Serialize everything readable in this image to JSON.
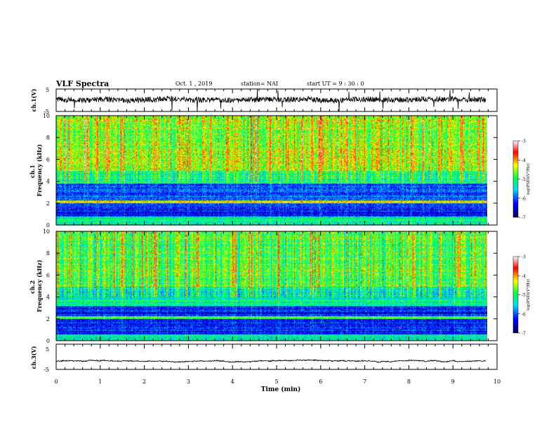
{
  "header": {
    "title": "VLF Spectra",
    "date": "Oct. 1  , 2019",
    "station": "station= NAI",
    "start": "start  UT =   9 : 30 : 0"
  },
  "chart_data": [
    {
      "type": "line",
      "panel": "ch1-waveform",
      "ylabel": "ch.1(V)",
      "ylim": [
        -5,
        5
      ],
      "yticks": [
        "5",
        "-5"
      ],
      "note": "dense noisy waveform centered near 0, excursions up to about ±5 V"
    },
    {
      "type": "heatmap",
      "panel": "ch1-spectrogram",
      "ylabel": "ch.1\nFrequency  (kHz)",
      "ylim": [
        0,
        10
      ],
      "yticks": [
        "0",
        "2",
        "4",
        "6",
        "8",
        "10"
      ],
      "xlim": [
        0,
        9.85
      ],
      "dominant_level_by_band": [
        {
          "f": [
            0,
            0.8
          ],
          "level": -5.2
        },
        {
          "f": [
            0.8,
            2.0
          ],
          "level": -6.2
        },
        {
          "f": [
            2.0,
            2.3
          ],
          "level": -4.3
        },
        {
          "f": [
            2.3,
            3.8
          ],
          "level": -6.0
        },
        {
          "f": [
            3.8,
            5.0
          ],
          "level": -5.0
        },
        {
          "f": [
            5.0,
            10.0
          ],
          "level": -4.5
        }
      ]
    },
    {
      "type": "heatmap",
      "panel": "ch2-spectrogram",
      "ylabel": "ch.2\nFrequency  (kHz)",
      "ylim": [
        0,
        10
      ],
      "yticks": [
        "0",
        "2",
        "4",
        "6",
        "8",
        "10"
      ],
      "xlim": [
        0,
        9.85
      ],
      "dominant_level_by_band": [
        {
          "f": [
            0,
            0.6
          ],
          "level": -5.3
        },
        {
          "f": [
            0.6,
            2.0
          ],
          "level": -6.2
        },
        {
          "f": [
            2.0,
            2.3
          ],
          "level": -5.0
        },
        {
          "f": [
            2.3,
            3.2
          ],
          "level": -6.3
        },
        {
          "f": [
            3.2,
            5.0
          ],
          "level": -5.3
        },
        {
          "f": [
            5.0,
            10.0
          ],
          "level": -4.8
        }
      ]
    },
    {
      "type": "line",
      "panel": "ch3-waveform",
      "ylabel": "ch.3(V)",
      "ylim": [
        -5,
        5
      ],
      "yticks": [
        "5",
        "-5"
      ],
      "note": "nearly flat trace at about -1.7 V with fine ripple"
    }
  ],
  "xaxis": {
    "label": "Time  (min)",
    "ticks": [
      "0",
      "1",
      "2",
      "3",
      "4",
      "5",
      "6",
      "7",
      "8",
      "9",
      "10"
    ],
    "xlim": [
      0,
      10
    ]
  },
  "colorbar": {
    "label": "log(PSD)(V²/Hz)",
    "ticks": [
      "-3",
      "-4",
      "-5",
      "-6",
      "-7"
    ],
    "range": [
      -7,
      -3
    ],
    "stops": [
      "#000060",
      "#0000ff",
      "#00d8ff",
      "#00ff40",
      "#ffff00",
      "#ff0000",
      "#ffffff"
    ]
  }
}
